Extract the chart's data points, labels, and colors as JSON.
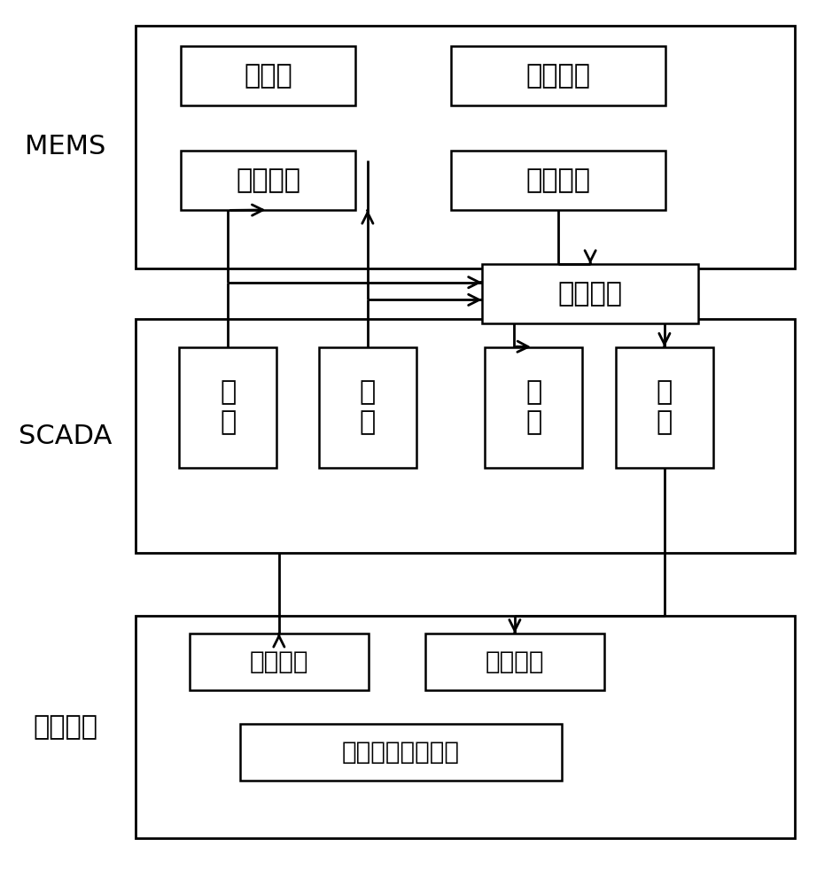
{
  "bg_color": "#ffffff",
  "mems_label": "MEMS",
  "scada_label": "SCADA",
  "local_label": "就地设备",
  "box_heiqidong": "黑启动",
  "box_youhua": "优化调度",
  "box_moshi": "模式切换",
  "box_yunxing": "运行控制",
  "box_shunxu": "顺序控制",
  "box_yaoCe": "遥\n测",
  "box_yaoXin": "遥\n信",
  "box_yaoDiao": "遥\n调",
  "box_yaoKong": "遥\n控",
  "box_cekong": "测控装置",
  "box_baohu": "保护装置",
  "box_fenbushi": "分布式发电控制器"
}
